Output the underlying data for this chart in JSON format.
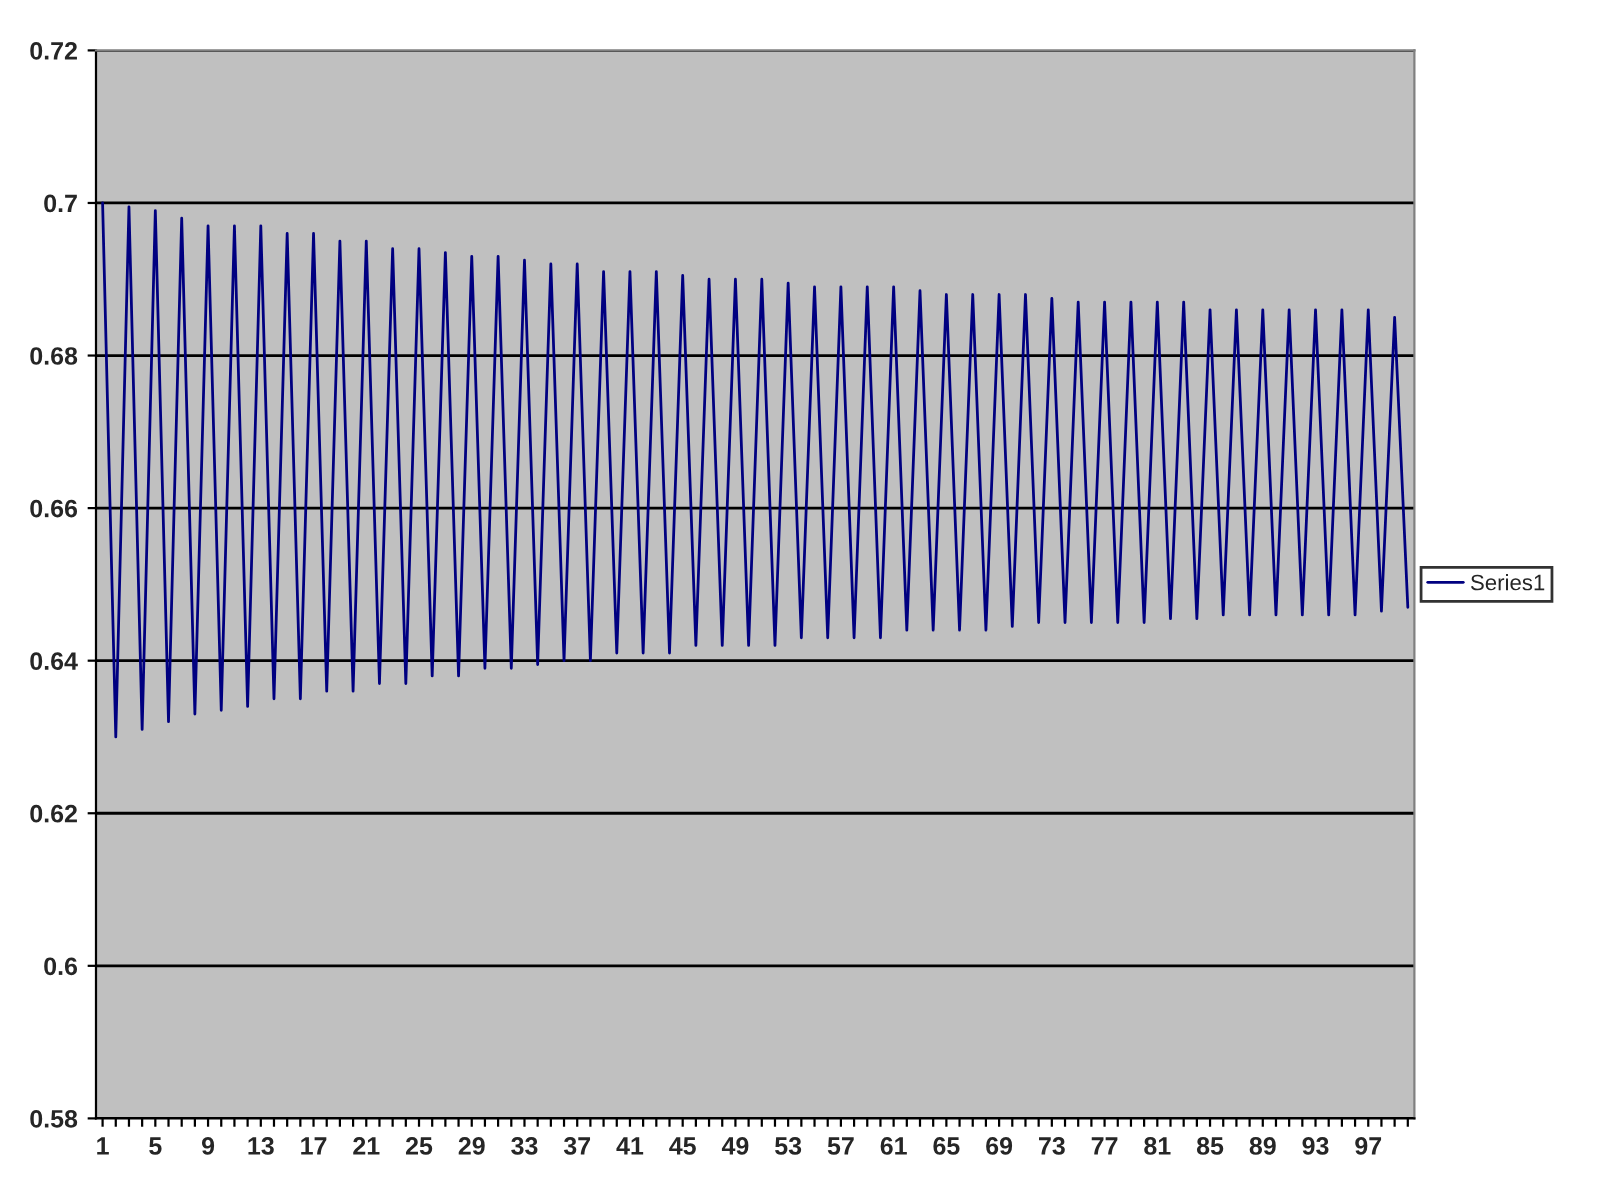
{
  "chart_data": {
    "type": "line",
    "categories": [
      "1",
      null,
      null,
      null,
      "5",
      null,
      null,
      null,
      "9",
      null,
      null,
      null,
      "13",
      null,
      null,
      null,
      "17",
      null,
      null,
      null,
      "21",
      null,
      null,
      null,
      "25",
      null,
      null,
      null,
      "29",
      null,
      null,
      null,
      "33",
      null,
      null,
      null,
      "37",
      null,
      null,
      null,
      "41",
      null,
      null,
      null,
      "45",
      null,
      null,
      null,
      "49",
      null,
      null,
      null,
      "53",
      null,
      null,
      null,
      "57",
      null,
      null,
      null,
      "61",
      null,
      null,
      null,
      "65",
      null,
      null,
      null,
      "69",
      null,
      null,
      null,
      "73",
      null,
      null,
      null,
      "77",
      null,
      null,
      null,
      "81",
      null,
      null,
      null,
      "85",
      null,
      null,
      null,
      "89",
      null,
      null,
      null,
      "93",
      null,
      null,
      null,
      "97",
      null,
      null,
      null
    ],
    "series": [
      {
        "name": "Series1",
        "color": "#000080",
        "values": [
          0.7,
          0.63,
          0.6995,
          0.631,
          0.699,
          0.632,
          0.698,
          0.633,
          0.697,
          0.6335,
          0.697,
          0.634,
          0.697,
          0.635,
          0.696,
          0.635,
          0.696,
          0.636,
          0.695,
          0.636,
          0.695,
          0.637,
          0.694,
          0.637,
          0.694,
          0.638,
          0.6935,
          0.638,
          0.693,
          0.639,
          0.693,
          0.639,
          0.6925,
          0.6395,
          0.692,
          0.64,
          0.692,
          0.64,
          0.691,
          0.641,
          0.691,
          0.641,
          0.691,
          0.641,
          0.6905,
          0.642,
          0.69,
          0.642,
          0.69,
          0.642,
          0.69,
          0.642,
          0.6895,
          0.643,
          0.689,
          0.643,
          0.689,
          0.643,
          0.689,
          0.643,
          0.689,
          0.644,
          0.6885,
          0.644,
          0.688,
          0.644,
          0.688,
          0.644,
          0.688,
          0.6445,
          0.688,
          0.645,
          0.6875,
          0.645,
          0.687,
          0.645,
          0.687,
          0.645,
          0.687,
          0.645,
          0.687,
          0.6455,
          0.687,
          0.6455,
          0.686,
          0.646,
          0.686,
          0.646,
          0.686,
          0.646,
          0.686,
          0.646,
          0.686,
          0.646,
          0.686,
          0.646,
          0.686,
          0.6465,
          0.685,
          0.647
        ]
      }
    ],
    "ylim": [
      0.58,
      0.72
    ],
    "yticks": [
      0.58,
      0.6,
      0.62,
      0.64,
      0.66,
      0.68,
      0.7,
      0.72
    ],
    "grid": "y",
    "legend": "right",
    "marker": "none",
    "line_style": "solid"
  }
}
